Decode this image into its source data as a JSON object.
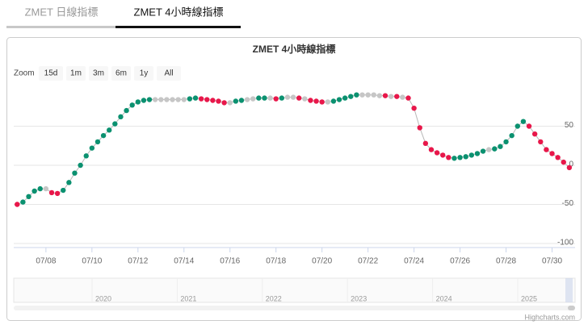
{
  "tabs": [
    "ZMET 日線指標",
    "ZMET 4小時線指標"
  ],
  "chart_data": {
    "type": "line",
    "title": "ZMET 4小時線指標",
    "zoom_label": "Zoom",
    "zoom_buttons": [
      "15d",
      "1m",
      "3m",
      "6m",
      "1y",
      "All"
    ],
    "x": [
      6.75,
      7,
      7.25,
      7.5,
      7.75,
      8,
      8.25,
      8.5,
      8.75,
      9,
      9.25,
      9.5,
      9.75,
      10,
      10.25,
      10.5,
      10.75,
      11,
      11.25,
      11.5,
      11.75,
      12,
      12.25,
      12.5,
      12.75,
      13,
      13.25,
      13.5,
      13.75,
      14,
      14.25,
      14.5,
      14.75,
      15,
      15.25,
      15.5,
      15.75,
      16,
      16.25,
      16.5,
      16.75,
      17,
      17.25,
      17.5,
      17.75,
      18,
      18.25,
      18.5,
      18.75,
      19,
      19.25,
      19.5,
      19.75,
      20,
      20.25,
      20.5,
      20.75,
      21,
      21.25,
      21.5,
      21.75,
      22,
      22.25,
      22.5,
      22.75,
      23,
      23.25,
      23.5,
      23.75,
      24,
      24.25,
      24.5,
      24.75,
      25,
      25.25,
      25.5,
      25.75,
      26,
      26.25,
      26.5,
      26.75,
      27,
      27.25,
      27.5,
      27.75,
      28,
      28.25,
      28.5,
      28.75,
      29,
      29.25,
      29.5,
      29.75,
      30,
      30.25,
      30.5,
      30.75
    ],
    "series": [
      {
        "color": "#b8b8b8",
        "values": [
          -50,
          -47,
          -40,
          -33,
          -30,
          -30,
          -35,
          -36,
          -32,
          -22,
          -10,
          0,
          12,
          22,
          30,
          38,
          45,
          53,
          62,
          70,
          77,
          81,
          83,
          84,
          84,
          84,
          84,
          84,
          84,
          84,
          85,
          86,
          85,
          84,
          83,
          82,
          80,
          80,
          82,
          83,
          84,
          85,
          86,
          86,
          86,
          85,
          86,
          87,
          87,
          86,
          85,
          83,
          82,
          81,
          81,
          82,
          84,
          86,
          88,
          90,
          90,
          90,
          90,
          89,
          89,
          88,
          88,
          87,
          86,
          73,
          48,
          28,
          20,
          16,
          13,
          10,
          9,
          10,
          11,
          13,
          15,
          18,
          20,
          21,
          24,
          30,
          38,
          50,
          56,
          50,
          40,
          30,
          20,
          15,
          10,
          4,
          -3
        ],
        "point_colors": [
          "#e8174a",
          "#0b9170",
          "#0b9170",
          "#0b9170",
          "#0b9170",
          "#c6c6c6",
          "#e8174a",
          "#e8174a",
          "#0b9170",
          "#0b9170",
          "#0b9170",
          "#0b9170",
          "#0b9170",
          "#0b9170",
          "#0b9170",
          "#0b9170",
          "#0b9170",
          "#0b9170",
          "#0b9170",
          "#0b9170",
          "#0b9170",
          "#0b9170",
          "#0b9170",
          "#0b9170",
          "#c6c6c6",
          "#c6c6c6",
          "#c6c6c6",
          "#c6c6c6",
          "#c6c6c6",
          "#c6c6c6",
          "#0b9170",
          "#0b9170",
          "#e8174a",
          "#e8174a",
          "#e8174a",
          "#e8174a",
          "#e8174a",
          "#c6c6c6",
          "#0b9170",
          "#0b9170",
          "#c6c6c6",
          "#c6c6c6",
          "#0b9170",
          "#0b9170",
          "#c6c6c6",
          "#e8174a",
          "#0b9170",
          "#c6c6c6",
          "#c6c6c6",
          "#e8174a",
          "#c6c6c6",
          "#e8174a",
          "#e8174a",
          "#e8174a",
          "#c6c6c6",
          "#0b9170",
          "#0b9170",
          "#0b9170",
          "#0b9170",
          "#0b9170",
          "#c6c6c6",
          "#c6c6c6",
          "#c6c6c6",
          "#c6c6c6",
          "#e8174a",
          "#c6c6c6",
          "#e8174a",
          "#c6c6c6",
          "#e8174a",
          "#e8174a",
          "#e8174a",
          "#e8174a",
          "#e8174a",
          "#e8174a",
          "#e8174a",
          "#e8174a",
          "#0b9170",
          "#0b9170",
          "#0b9170",
          "#0b9170",
          "#0b9170",
          "#0b9170",
          "#c6c6c6",
          "#0b9170",
          "#0b9170",
          "#0b9170",
          "#0b9170",
          "#0b9170",
          "#0b9170",
          "#e8174a",
          "#e8174a",
          "#e8174a",
          "#e8174a",
          "#e8174a",
          "#e8174a",
          "#e8174a",
          "#e8174a"
        ]
      }
    ],
    "xlim": [
      6.6,
      31.0
    ],
    "xticks": [
      {
        "value": 8,
        "label": "07/08"
      },
      {
        "value": 10,
        "label": "07/10"
      },
      {
        "value": 12,
        "label": "07/12"
      },
      {
        "value": 14,
        "label": "07/14"
      },
      {
        "value": 16,
        "label": "07/16"
      },
      {
        "value": 18,
        "label": "07/18"
      },
      {
        "value": 20,
        "label": "07/20"
      },
      {
        "value": 22,
        "label": "07/22"
      },
      {
        "value": 24,
        "label": "07/24"
      },
      {
        "value": 26,
        "label": "07/26"
      },
      {
        "value": 28,
        "label": "07/28"
      },
      {
        "value": 30,
        "label": "07/30"
      }
    ],
    "ylim": [
      -100,
      100
    ],
    "yticks": [
      -100,
      -50,
      0,
      50
    ],
    "grid": true,
    "navigator_labels": [
      "2020",
      "2021",
      "2022",
      "2023",
      "2024",
      "2025"
    ],
    "credits": "Highcharts.com"
  }
}
